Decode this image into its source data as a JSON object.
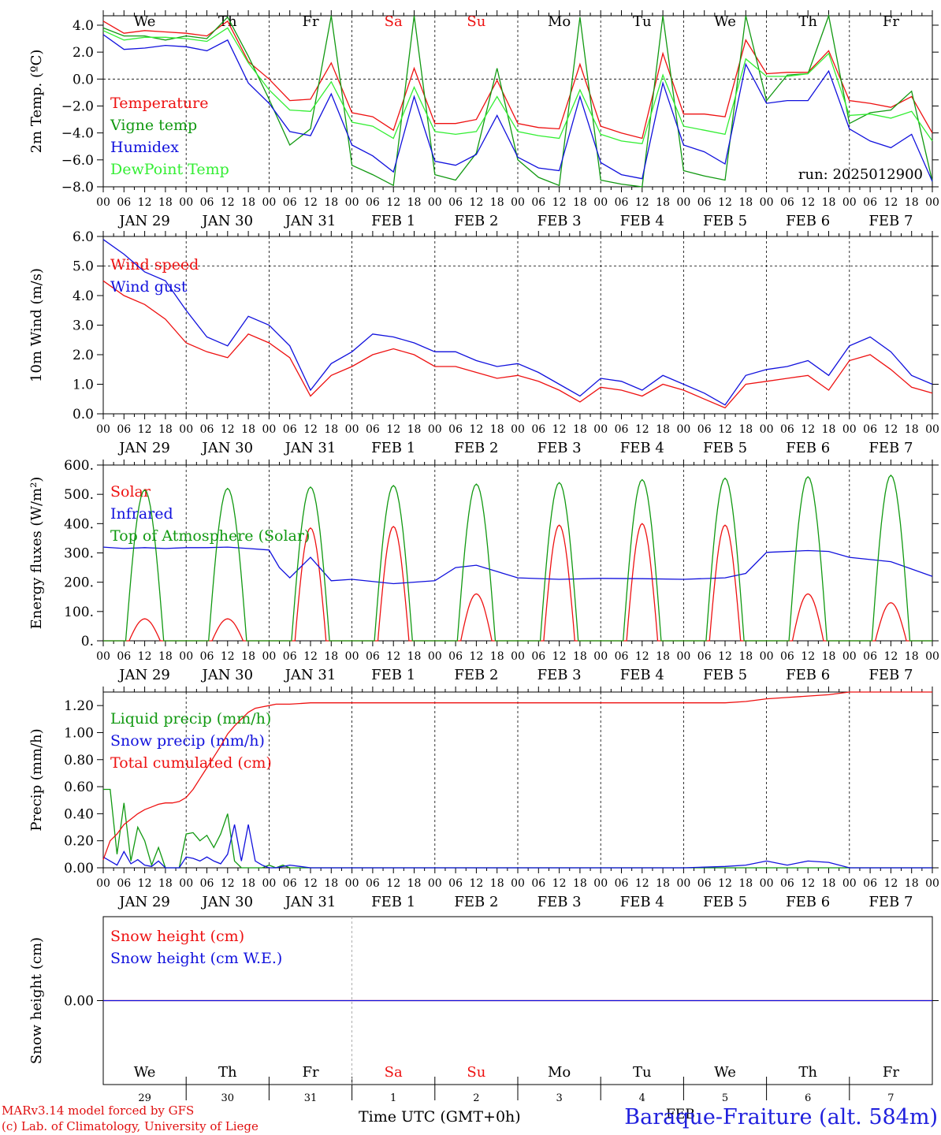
{
  "run_label": "run: 2025012900",
  "credits": {
    "line1": "MARv3.14 model forced by GFS",
    "line2": "(c) Lab. of Climatology, University of Liege"
  },
  "x_axis_title": "Time UTC (GMT+0h)",
  "station_title": "Baraque-Fraiture (alt. 584m)",
  "month_label": "FEB",
  "colors": {
    "red": "#ee1111",
    "darkgreen": "#119911",
    "blue": "#1111dd",
    "lightgreen": "#33ee33",
    "weekend": "#ee1111",
    "black": "#000000"
  },
  "days": {
    "weekday_labels": [
      "We",
      "Th",
      "Fr",
      "Sa",
      "Su",
      "Mo",
      "Tu",
      "We",
      "Th",
      "Fr"
    ],
    "weekend_flags": [
      false,
      false,
      false,
      true,
      true,
      false,
      false,
      false,
      false,
      false
    ],
    "date_labels": [
      "JAN 29",
      "JAN 30",
      "JAN 31",
      "FEB  1",
      "FEB  2",
      "FEB  3",
      "FEB  4",
      "FEB  5",
      "FEB  6",
      "FEB  7"
    ],
    "day_numbers": [
      "29",
      "30",
      "31",
      "1",
      "2",
      "3",
      "4",
      "5",
      "6",
      "7"
    ],
    "hour_ticks": [
      "00",
      "06",
      "12",
      "18"
    ],
    "final_tick": "00"
  },
  "chart_data": [
    {
      "type": "line",
      "id": "temperature",
      "ylabel": "2m Temp. (ºC)",
      "ylim": [
        -8,
        4.7
      ],
      "yticks": [
        "4.0",
        "2.0",
        "0.0",
        "−2.0",
        "−4.0",
        "−6.0",
        "−8.0"
      ],
      "ytick_values": [
        4,
        2,
        0,
        -2,
        -4,
        -6,
        -8
      ],
      "dashed_reference": 0,
      "x_unit": "hours from 2025-01-29 00 UTC",
      "grid": "daily vertical dashed lines",
      "legend_position": "left",
      "series": [
        {
          "name": "Temperature",
          "color_key": "red",
          "x": [
            0,
            6,
            12,
            18,
            24,
            30,
            36,
            42,
            48,
            54,
            60,
            66,
            72,
            78,
            84,
            90,
            96,
            102,
            108,
            114,
            120,
            126,
            132,
            138,
            144,
            150,
            156,
            162,
            168,
            174,
            180,
            186,
            192,
            198,
            204,
            210,
            216,
            222,
            228,
            234,
            240
          ],
          "y": [
            4.3,
            3.4,
            3.6,
            3.5,
            3.4,
            3.2,
            4.3,
            1.3,
            0.0,
            -1.6,
            -1.5,
            1.2,
            -2.5,
            -2.8,
            -3.8,
            0.8,
            -3.3,
            -3.3,
            -3.0,
            -0.1,
            -3.3,
            -3.6,
            -3.7,
            1.1,
            -3.5,
            -4.0,
            -4.4,
            1.9,
            -2.6,
            -2.6,
            -2.8,
            2.9,
            0.4,
            0.5,
            0.5,
            2.1,
            -1.6,
            -1.8,
            -2.1,
            -1.3,
            -4.0
          ]
        },
        {
          "name": "Vigne temp",
          "color_key": "darkgreen",
          "x": [
            0,
            6,
            12,
            18,
            24,
            30,
            36,
            42,
            48,
            54,
            60,
            66,
            72,
            78,
            84,
            90,
            96,
            102,
            108,
            114,
            120,
            126,
            132,
            138,
            144,
            150,
            156,
            162,
            168,
            174,
            180,
            186,
            192,
            198,
            204,
            210,
            216,
            222,
            228,
            234,
            240
          ],
          "y": [
            3.8,
            3.2,
            3.2,
            2.9,
            3.2,
            3.0,
            4.6,
            1.7,
            -1.5,
            -4.9,
            -3.7,
            4.9,
            -6.4,
            -7.1,
            -7.9,
            4.8,
            -7.1,
            -7.5,
            -5.5,
            0.8,
            -6.0,
            -7.3,
            -7.9,
            4.6,
            -7.5,
            -7.8,
            -8.0,
            4.8,
            -6.8,
            -7.2,
            -7.5,
            4.9,
            -1.6,
            0.3,
            0.4,
            4.9,
            -3.3,
            -2.5,
            -2.3,
            -0.9,
            -7.6
          ]
        },
        {
          "name": "Humidex",
          "color_key": "blue",
          "x": [
            0,
            6,
            12,
            18,
            24,
            30,
            36,
            42,
            48,
            54,
            60,
            66,
            72,
            78,
            84,
            90,
            96,
            102,
            108,
            114,
            120,
            126,
            132,
            138,
            144,
            150,
            156,
            162,
            168,
            174,
            180,
            186,
            192,
            198,
            204,
            210,
            216,
            222,
            228,
            234,
            240
          ],
          "y": [
            3.3,
            2.2,
            2.3,
            2.5,
            2.4,
            2.1,
            2.9,
            -0.3,
            -1.8,
            -3.9,
            -4.2,
            -1.1,
            -4.9,
            -5.7,
            -6.9,
            -1.3,
            -6.1,
            -6.4,
            -5.6,
            -2.7,
            -5.8,
            -6.6,
            -6.8,
            -1.3,
            -6.2,
            -7.1,
            -7.4,
            -0.3,
            -4.9,
            -5.4,
            -6.3,
            1.1,
            -1.8,
            -1.6,
            -1.6,
            0.6,
            -3.7,
            -4.6,
            -5.1,
            -4.1,
            -7.6
          ]
        },
        {
          "name": "DewPoint Temp",
          "color_key": "lightgreen",
          "x": [
            0,
            6,
            12,
            18,
            24,
            30,
            36,
            42,
            48,
            54,
            60,
            66,
            72,
            78,
            84,
            90,
            96,
            102,
            108,
            114,
            120,
            126,
            132,
            138,
            144,
            150,
            156,
            162,
            168,
            174,
            180,
            186,
            192,
            198,
            204,
            210,
            216,
            222,
            228,
            234,
            240
          ],
          "y": [
            3.6,
            2.9,
            3.1,
            3.1,
            3.0,
            2.8,
            3.8,
            1.2,
            -0.8,
            -2.3,
            -2.4,
            -0.2,
            -3.2,
            -3.5,
            -4.4,
            -0.6,
            -3.9,
            -4.1,
            -3.9,
            -1.3,
            -3.9,
            -4.2,
            -4.4,
            -0.8,
            -4.1,
            -4.6,
            -4.8,
            0.3,
            -3.5,
            -3.8,
            -4.1,
            1.5,
            0.2,
            0.2,
            0.4,
            1.9,
            -2.7,
            -2.6,
            -2.9,
            -2.4,
            -4.6
          ]
        }
      ]
    },
    {
      "type": "line",
      "id": "wind",
      "ylabel": "10m Wind (m/s)",
      "ylim": [
        0,
        6
      ],
      "yticks": [
        "6.0",
        "5.0",
        "4.0",
        "3.0",
        "2.0",
        "1.0",
        "0.0"
      ],
      "ytick_values": [
        6,
        5,
        4,
        3,
        2,
        1,
        0
      ],
      "dashed_reference": 5,
      "x_unit": "hours from 2025-01-29 00 UTC",
      "grid": "daily vertical dashed lines",
      "legend_position": "left",
      "series": [
        {
          "name": "Wind speed",
          "color_key": "red",
          "x": [
            0,
            6,
            12,
            18,
            24,
            30,
            36,
            42,
            48,
            54,
            60,
            66,
            72,
            78,
            84,
            90,
            96,
            102,
            108,
            114,
            120,
            126,
            132,
            138,
            144,
            150,
            156,
            162,
            168,
            174,
            180,
            186,
            192,
            198,
            204,
            210,
            216,
            222,
            228,
            234,
            240
          ],
          "y": [
            4.5,
            4.0,
            3.7,
            3.2,
            2.4,
            2.1,
            1.9,
            2.7,
            2.4,
            1.9,
            0.6,
            1.3,
            1.6,
            2.0,
            2.2,
            2.0,
            1.6,
            1.6,
            1.4,
            1.2,
            1.3,
            1.1,
            0.8,
            0.4,
            0.9,
            0.8,
            0.6,
            1.0,
            0.8,
            0.5,
            0.2,
            1.0,
            1.1,
            1.2,
            1.3,
            0.8,
            1.8,
            2.0,
            1.5,
            0.9,
            0.7
          ]
        },
        {
          "name": "Wind gust",
          "color_key": "blue",
          "x": [
            0,
            6,
            12,
            18,
            24,
            30,
            36,
            42,
            48,
            54,
            60,
            66,
            72,
            78,
            84,
            90,
            96,
            102,
            108,
            114,
            120,
            126,
            132,
            138,
            144,
            150,
            156,
            162,
            168,
            174,
            180,
            186,
            192,
            198,
            204,
            210,
            216,
            222,
            228,
            234,
            240
          ],
          "y": [
            5.9,
            5.4,
            4.8,
            4.5,
            3.5,
            2.6,
            2.3,
            3.3,
            3.0,
            2.3,
            0.8,
            1.7,
            2.1,
            2.7,
            2.6,
            2.4,
            2.1,
            2.1,
            1.8,
            1.6,
            1.7,
            1.4,
            1.0,
            0.6,
            1.2,
            1.1,
            0.8,
            1.3,
            1.0,
            0.7,
            0.3,
            1.3,
            1.5,
            1.6,
            1.8,
            1.3,
            2.3,
            2.6,
            2.1,
            1.3,
            1.0
          ]
        }
      ]
    },
    {
      "type": "line",
      "id": "energy",
      "ylabel": "Energy fluxes (W/m²)",
      "ylim": [
        0,
        600
      ],
      "yticks": [
        "600.",
        "500.",
        "400.",
        "300.",
        "200.",
        "100.",
        "0."
      ],
      "ytick_values": [
        600,
        500,
        400,
        300,
        200,
        100,
        0
      ],
      "x_unit": "hours from 2025-01-29 00 UTC",
      "grid": "daily vertical dashed lines",
      "legend_position": "left",
      "series": [
        {
          "name": "Solar",
          "color_key": "red",
          "diurnal": true,
          "day_peaks": [
            75,
            75,
            385,
            390,
            160,
            395,
            400,
            395,
            160,
            130
          ]
        },
        {
          "name": "Infrared",
          "color_key": "blue",
          "x": [
            0,
            6,
            12,
            18,
            24,
            30,
            36,
            42,
            48,
            51,
            54,
            60,
            66,
            72,
            84,
            96,
            102,
            108,
            120,
            132,
            144,
            156,
            168,
            180,
            186,
            192,
            204,
            210,
            216,
            228,
            240
          ],
          "y": [
            320,
            315,
            318,
            315,
            318,
            318,
            320,
            315,
            310,
            250,
            215,
            285,
            205,
            210,
            195,
            205,
            250,
            258,
            215,
            210,
            213,
            212,
            210,
            215,
            230,
            302,
            308,
            305,
            285,
            270,
            220
          ]
        },
        {
          "name": "Top of Atmosphere (Solar)",
          "color_key": "darkgreen",
          "diurnal": true,
          "day_peaks": [
            515,
            520,
            525,
            530,
            535,
            540,
            550,
            555,
            560,
            565
          ]
        }
      ]
    },
    {
      "type": "line",
      "id": "precip",
      "ylabel": "Precip (mm/h)",
      "ylim": [
        0,
        1.3
      ],
      "yticks": [
        "1.20",
        "1.00",
        "0.80",
        "0.60",
        "0.40",
        "0.20",
        "0.00"
      ],
      "ytick_values": [
        1.2,
        1.0,
        0.8,
        0.6,
        0.4,
        0.2,
        0.0
      ],
      "x_unit": "hours from 2025-01-29 00 UTC",
      "grid": "daily vertical dashed lines",
      "legend_position": "left",
      "series": [
        {
          "name": "Liquid precip (mm/h)",
          "color_key": "darkgreen",
          "x": [
            0,
            2,
            4,
            6,
            8,
            10,
            12,
            14,
            16,
            18,
            20,
            22,
            24,
            26,
            28,
            30,
            32,
            34,
            36,
            38,
            40,
            42,
            44,
            46,
            48,
            50,
            52,
            54,
            56,
            58,
            60,
            62,
            64,
            240
          ],
          "y": [
            0.58,
            0.58,
            0.1,
            0.48,
            0.05,
            0.3,
            0.2,
            0.02,
            0.15,
            0.0,
            0.0,
            0.0,
            0.25,
            0.26,
            0.2,
            0.24,
            0.15,
            0.25,
            0.4,
            0.05,
            0.0,
            0.0,
            0.0,
            0.0,
            0.02,
            0.0,
            0.02,
            0.0,
            0.0,
            0.0,
            0.0,
            0.0,
            0.0,
            0.0
          ]
        },
        {
          "name": "Snow precip (mm/h)",
          "color_key": "blue",
          "x": [
            0,
            2,
            4,
            6,
            8,
            10,
            12,
            14,
            16,
            18,
            20,
            22,
            24,
            26,
            28,
            30,
            32,
            34,
            36,
            38,
            40,
            42,
            44,
            46,
            48,
            50,
            54,
            60,
            168,
            180,
            186,
            192,
            198,
            204,
            210,
            216,
            240
          ],
          "y": [
            0.08,
            0.05,
            0.02,
            0.12,
            0.03,
            0.06,
            0.02,
            0.01,
            0.05,
            0.0,
            0.0,
            0.0,
            0.08,
            0.07,
            0.05,
            0.08,
            0.05,
            0.03,
            0.1,
            0.32,
            0.05,
            0.32,
            0.05,
            0.02,
            0.0,
            0.0,
            0.02,
            0.0,
            0.0,
            0.01,
            0.02,
            0.05,
            0.02,
            0.05,
            0.04,
            0.0,
            0.0
          ]
        },
        {
          "name": "Total cumulated (cm)",
          "color_key": "red",
          "x": [
            0,
            2,
            4,
            6,
            8,
            10,
            12,
            14,
            16,
            18,
            20,
            22,
            24,
            26,
            28,
            30,
            32,
            34,
            36,
            38,
            40,
            42,
            44,
            46,
            48,
            50,
            54,
            60,
            72,
            96,
            144,
            168,
            180,
            186,
            192,
            198,
            204,
            210,
            216,
            240
          ],
          "y": [
            0.06,
            0.2,
            0.25,
            0.32,
            0.36,
            0.4,
            0.43,
            0.45,
            0.47,
            0.48,
            0.48,
            0.49,
            0.52,
            0.58,
            0.66,
            0.74,
            0.82,
            0.9,
            0.99,
            1.05,
            1.1,
            1.15,
            1.18,
            1.19,
            1.2,
            1.21,
            1.21,
            1.22,
            1.22,
            1.22,
            1.22,
            1.22,
            1.22,
            1.23,
            1.25,
            1.26,
            1.27,
            1.28,
            1.3,
            1.3
          ]
        }
      ]
    },
    {
      "type": "line",
      "id": "snow",
      "ylabel": "Snow height (cm)",
      "yticks": [
        "0.00"
      ],
      "ytick_values": [
        0
      ],
      "x_unit": "hours from 2025-01-29 00 UTC",
      "legend_position": "left",
      "series": [
        {
          "name": "Snow height (cm)",
          "color_key": "red",
          "x": [
            0,
            240
          ],
          "y": [
            0,
            0
          ]
        },
        {
          "name": "Snow height (cm W.E.)",
          "color_key": "blue",
          "x": [
            0,
            240
          ],
          "y": [
            0,
            0
          ]
        }
      ]
    }
  ]
}
